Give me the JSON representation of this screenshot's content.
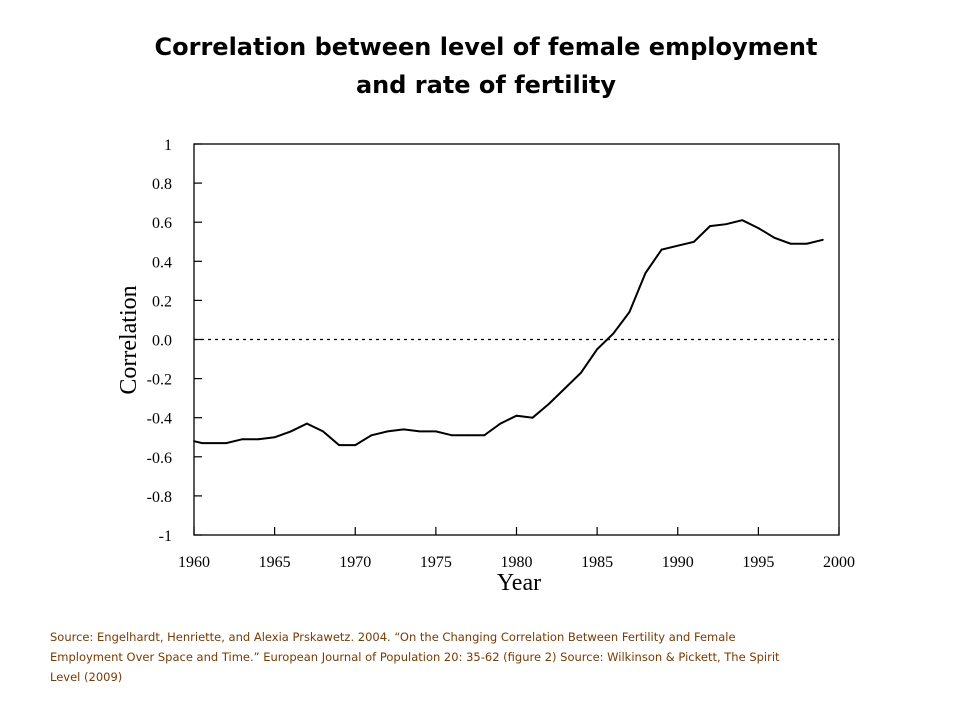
{
  "slide": {
    "title_line1": "Correlation between level of female employment",
    "title_line2": "and rate of fertility",
    "source_text": "Source:  Engelhardt, Henriette, and Alexia Prskawetz. 2004. “On the Changing Correlation Between Fertility and Female Employment Over Space and Time.” European Journal of Population 20: 35-62 (figure 2) Source: Wilkinson & Pickett, The Spirit Level (2009)"
  },
  "chart_data": {
    "type": "line",
    "title": "",
    "xlabel": "Year",
    "ylabel": "Correlation",
    "xlim": [
      1960,
      2000
    ],
    "ylim": [
      -1,
      1
    ],
    "x_ticks": [
      1960,
      1965,
      1970,
      1975,
      1980,
      1985,
      1990,
      1995,
      2000
    ],
    "x_tick_labels": [
      "1960",
      "1965",
      "1970",
      "1975",
      "1980",
      "1985",
      "1990",
      "1995",
      "2000"
    ],
    "y_ticks": [
      1,
      0.8,
      0.6,
      0.4,
      0.2,
      0,
      -0.2,
      -0.4,
      -0.6,
      -0.8,
      -1
    ],
    "y_tick_labels": [
      "1",
      "0.8",
      "0.6",
      "0.4",
      "0.2",
      "0.0",
      "-0.2",
      "-0.4",
      "-0.6",
      "-0.8",
      "-1"
    ],
    "reference_line": {
      "y": 0,
      "style": "dotted"
    },
    "grid": false,
    "line_color": "#000000",
    "series": [
      {
        "x": [
          1960,
          1960.5,
          1961,
          1962,
          1963,
          1964,
          1965,
          1966,
          1967,
          1968,
          1969,
          1970,
          1971,
          1972,
          1973,
          1974,
          1975,
          1976,
          1977,
          1978,
          1979,
          1980,
          1981,
          1982,
          1983,
          1984,
          1985,
          1986,
          1987,
          1988,
          1989,
          1990,
          1991,
          1992,
          1993,
          1994,
          1995,
          1996,
          1997,
          1998,
          1999
        ],
        "y": [
          -0.52,
          -0.53,
          -0.53,
          -0.53,
          -0.51,
          -0.51,
          -0.5,
          -0.47,
          -0.43,
          -0.47,
          -0.54,
          -0.54,
          -0.49,
          -0.47,
          -0.46,
          -0.47,
          -0.47,
          -0.49,
          -0.49,
          -0.49,
          -0.43,
          -0.39,
          -0.4,
          -0.33,
          -0.25,
          -0.17,
          -0.05,
          0.03,
          0.14,
          0.34,
          0.46,
          0.48,
          0.5,
          0.58,
          0.59,
          0.61,
          0.57,
          0.52,
          0.49,
          0.49,
          0.51
        ]
      }
    ]
  }
}
